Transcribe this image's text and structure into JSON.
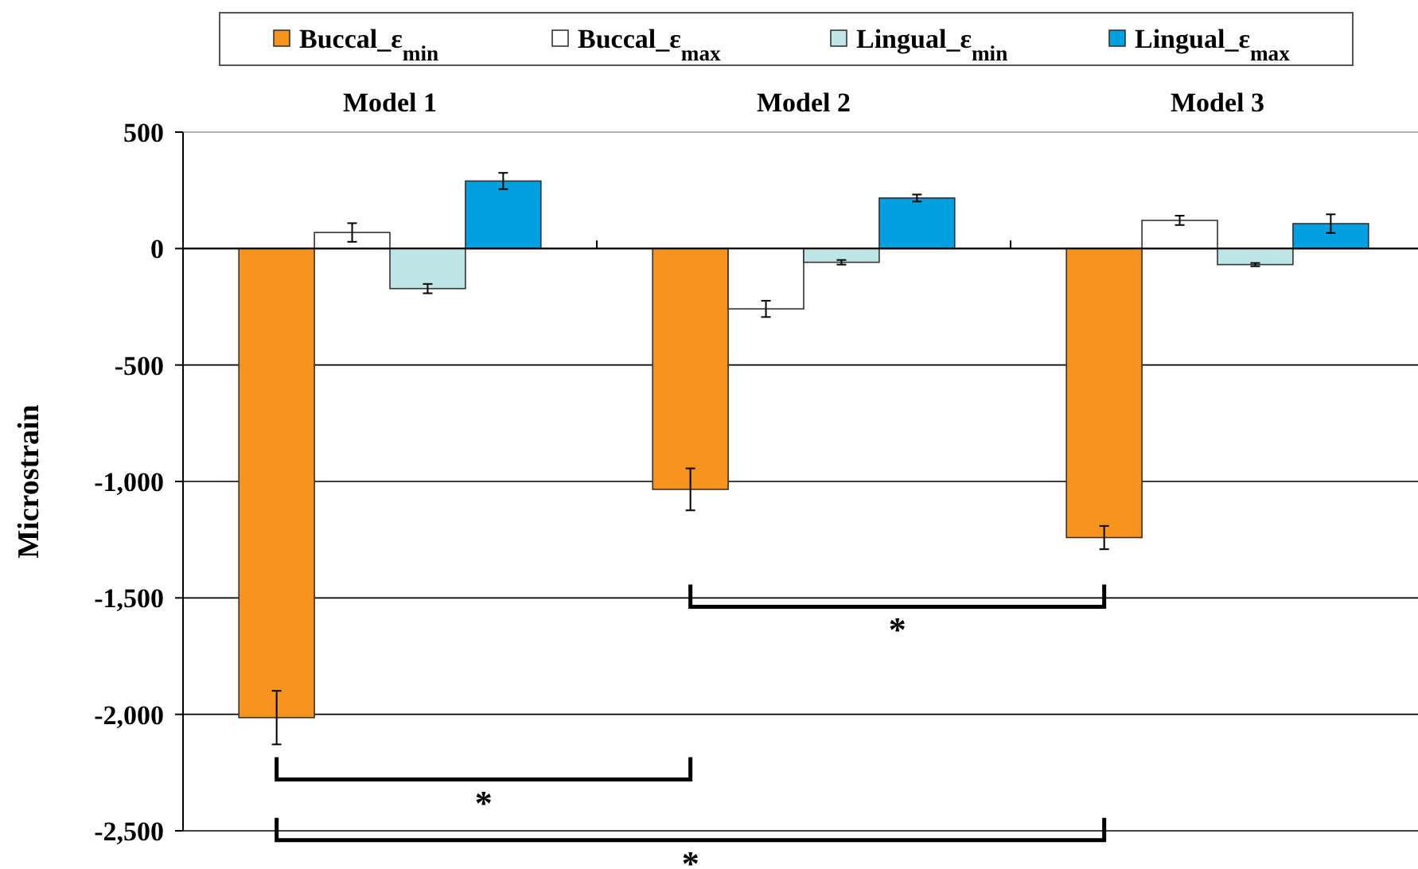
{
  "chart_data": {
    "type": "bar",
    "ylabel": "Microstrain",
    "categories": [
      "Model 1",
      "Model 2",
      "Model 3"
    ],
    "series": [
      {
        "name": "Buccal_ε$_{min}$",
        "color": "#f7941d",
        "values": [
          -2014,
          -1034,
          -1241
        ],
        "errors": [
          115,
          90,
          50
        ]
      },
      {
        "name": "Buccal_ε$_{max}$",
        "color": "#ffffff",
        "values": [
          69,
          -259,
          121
        ],
        "errors": [
          40,
          35,
          20
        ]
      },
      {
        "name": "Lingual_ε$_{min}$",
        "color": "#bfe6e6",
        "values": [
          -172,
          -59,
          -69
        ],
        "errors": [
          20,
          10,
          7
        ]
      },
      {
        "name": "Lingual_ε$_{max}$",
        "color": "#00a0e0",
        "values": [
          290,
          217,
          107
        ],
        "errors": [
          35,
          15,
          40
        ]
      }
    ],
    "ylim": [
      -2500,
      500
    ],
    "yticks": [
      {
        "value": -2500,
        "label": "-2,500"
      },
      {
        "value": -2000,
        "label": "-2,000"
      },
      {
        "value": -1500,
        "label": "-1,500"
      },
      {
        "value": -1000,
        "label": "-1,000"
      },
      -500,
      0,
      500
    ],
    "grid": "y",
    "legend": "top",
    "annotations": [
      "*",
      "*",
      "*"
    ]
  }
}
